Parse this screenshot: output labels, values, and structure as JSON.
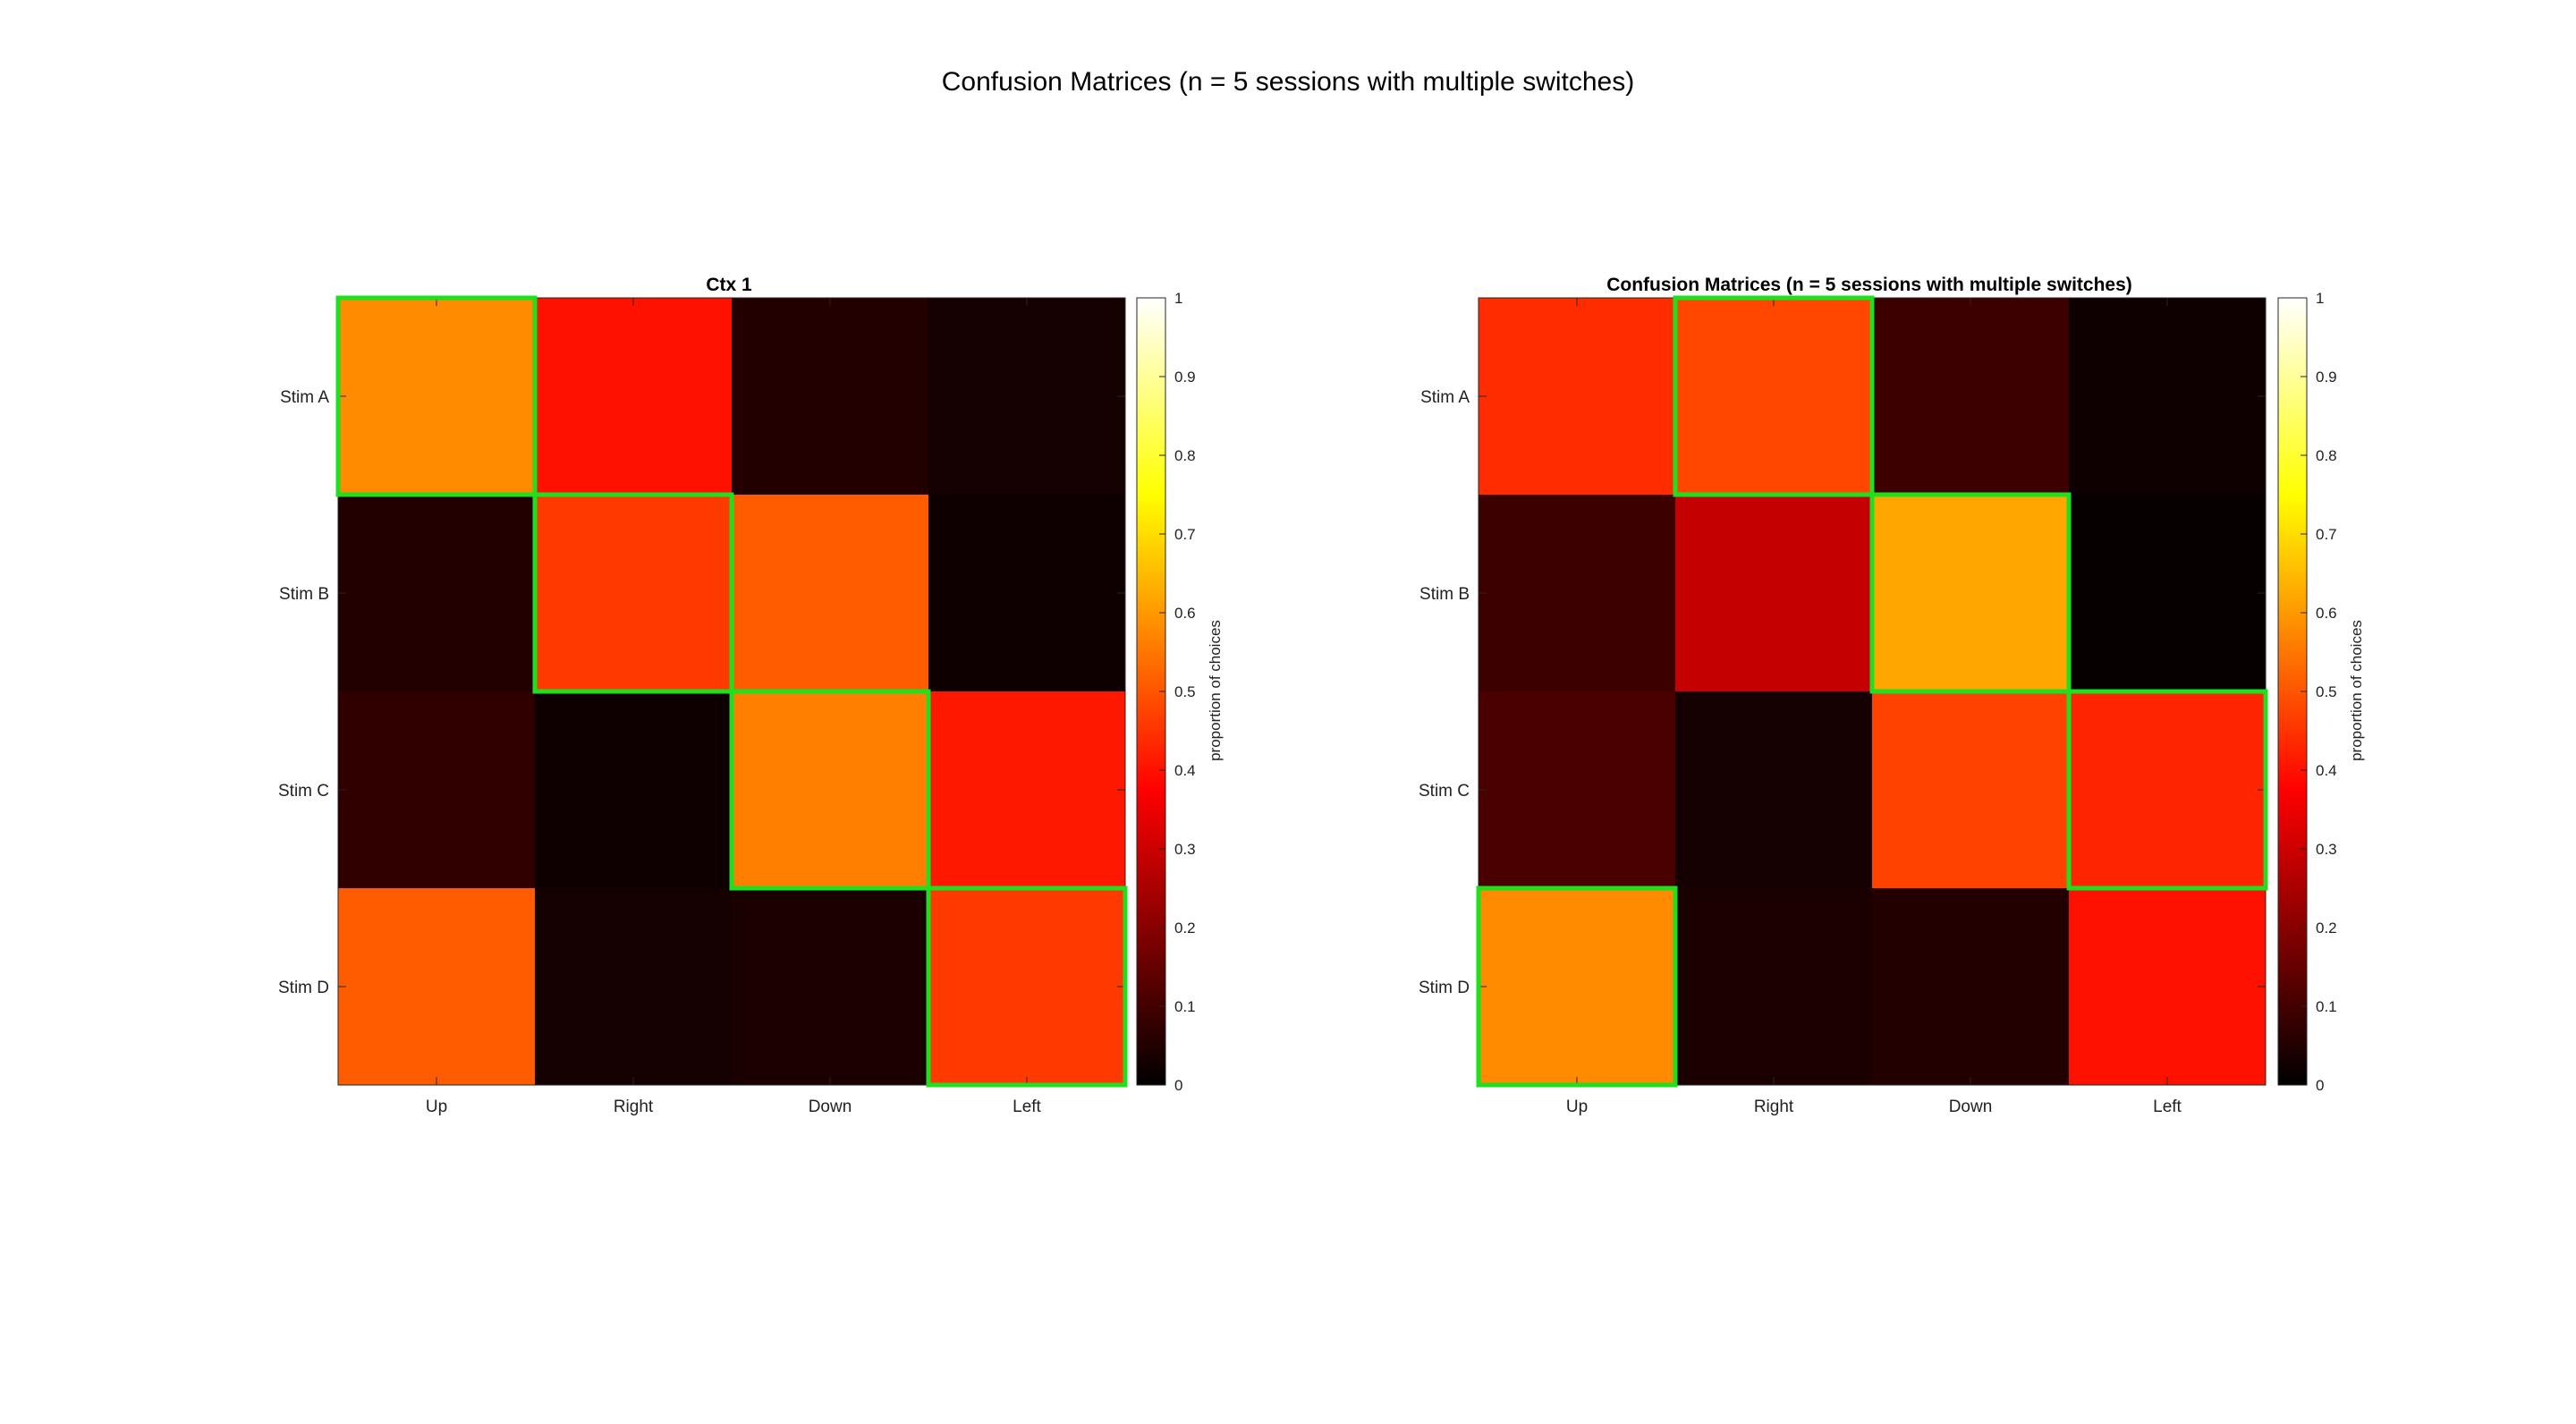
{
  "chart_data": {
    "title": "Confusion Matrices (n = 5 sessions with multiple switches)",
    "type": "heatmap",
    "colormap": "hot",
    "clim": [
      0,
      1
    ],
    "highlight_color": "#1fe01f",
    "panels": [
      {
        "title": "Ctx 1",
        "type": "heatmap",
        "xlabels": [
          "Up",
          "Right",
          "Down",
          "Left"
        ],
        "ylabels": [
          "Stim A",
          "Stim B",
          "Stim C",
          "Stim D"
        ],
        "values": [
          [
            0.58,
            0.4,
            0.05,
            0.03
          ],
          [
            0.05,
            0.46,
            0.51,
            0.02
          ],
          [
            0.07,
            0.02,
            0.56,
            0.41
          ],
          [
            0.51,
            0.03,
            0.04,
            0.46
          ]
        ],
        "correct": [
          [
            0,
            0
          ],
          [
            1,
            1
          ],
          [
            2,
            2
          ],
          [
            3,
            3
          ]
        ],
        "colorbar": {
          "label": "proportion of choices",
          "ticks": [
            "0",
            "0.1",
            "0.2",
            "0.3",
            "0.4",
            "0.5",
            "0.6",
            "0.7",
            "0.8",
            "0.9",
            "1"
          ]
        }
      },
      {
        "title": "Confusion Matrices (n = 5 sessions with multiple switches)",
        "type": "heatmap",
        "xlabels": [
          "Up",
          "Right",
          "Down",
          "Left"
        ],
        "ylabels": [
          "Stim A",
          "Stim B",
          "Stim C",
          "Stim D"
        ],
        "values": [
          [
            0.44,
            0.48,
            0.09,
            0.02
          ],
          [
            0.09,
            0.29,
            0.62,
            0.01
          ],
          [
            0.11,
            0.03,
            0.47,
            0.43
          ],
          [
            0.58,
            0.04,
            0.05,
            0.4
          ]
        ],
        "correct": [
          [
            0,
            1
          ],
          [
            1,
            2
          ],
          [
            2,
            3
          ],
          [
            3,
            0
          ]
        ],
        "colorbar": {
          "label": "proportion of choices",
          "ticks": [
            "0",
            "0.1",
            "0.2",
            "0.3",
            "0.4",
            "0.5",
            "0.6",
            "0.7",
            "0.8",
            "0.9",
            "1"
          ]
        }
      }
    ]
  }
}
